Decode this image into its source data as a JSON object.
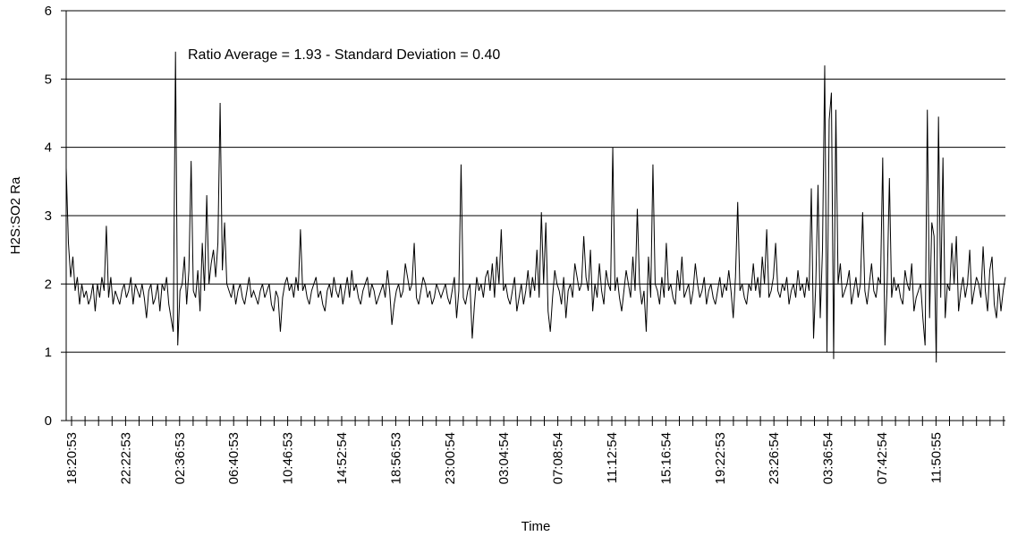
{
  "chart_data": {
    "type": "line",
    "title": "",
    "annotation": "Ratio Average = 1.93 - Standard Deviation = 0.40",
    "xlabel": "Time",
    "ylabel": "H2S:SO2 Ra",
    "ylim": [
      0,
      6
    ],
    "yticks": [
      0,
      1,
      2,
      3,
      4,
      5,
      6
    ],
    "grid": "horizontal",
    "legend": "none",
    "line_color": "#000000",
    "xtick_labels": [
      "18:20:53",
      "22:22:53",
      "02:36:53",
      "06:40:53",
      "10:46:53",
      "14:52:54",
      "18:56:53",
      "23:00:54",
      "03:04:54",
      "07:08:54",
      "11:12:54",
      "15:16:54",
      "19:22:53",
      "23:26:54",
      "03:36:54",
      "07:42:54",
      "11:50:55"
    ],
    "series": [
      {
        "name": "",
        "values": [
          3.7,
          2.6,
          2.1,
          2.4,
          1.9,
          2.1,
          1.7,
          2.0,
          1.8,
          1.9,
          1.7,
          1.8,
          2.0,
          1.6,
          2.0,
          1.8,
          2.1,
          1.9,
          2.85,
          1.8,
          2.1,
          1.7,
          1.9,
          1.8,
          1.7,
          1.9,
          2.0,
          1.8,
          1.9,
          2.1,
          1.7,
          2.0,
          1.9,
          1.8,
          2.0,
          1.8,
          1.5,
          1.9,
          2.0,
          1.7,
          1.8,
          2.0,
          1.6,
          2.0,
          1.9,
          2.1,
          1.7,
          1.5,
          1.3,
          5.4,
          1.1,
          1.9,
          2.0,
          2.4,
          1.7,
          2.2,
          3.8,
          1.9,
          1.8,
          2.2,
          1.6,
          2.6,
          1.9,
          3.3,
          2.0,
          2.3,
          2.5,
          2.1,
          2.6,
          4.65,
          2.2,
          2.9,
          2.0,
          1.9,
          1.8,
          2.0,
          1.7,
          1.9,
          2.0,
          1.8,
          1.7,
          1.9,
          2.1,
          1.8,
          1.9,
          1.8,
          1.7,
          1.9,
          2.0,
          1.8,
          1.9,
          2.0,
          1.7,
          1.6,
          1.9,
          1.8,
          1.3,
          1.8,
          2.0,
          2.1,
          1.9,
          2.0,
          1.8,
          2.1,
          1.9,
          2.8,
          1.9,
          2.0,
          1.8,
          1.7,
          1.9,
          2.0,
          2.1,
          1.8,
          1.9,
          1.7,
          1.6,
          1.9,
          2.0,
          1.8,
          2.1,
          1.9,
          1.8,
          2.0,
          1.7,
          1.9,
          2.1,
          1.8,
          2.2,
          1.9,
          2.0,
          1.8,
          1.7,
          1.9,
          2.0,
          2.1,
          1.8,
          2.0,
          1.9,
          1.7,
          1.8,
          1.9,
          2.0,
          1.8,
          2.2,
          1.9,
          1.4,
          1.7,
          1.9,
          2.0,
          1.8,
          1.9,
          2.3,
          2.1,
          1.9,
          2.0,
          2.6,
          1.8,
          1.7,
          1.9,
          2.1,
          2.0,
          1.8,
          1.9,
          1.7,
          1.8,
          2.0,
          1.9,
          1.8,
          1.9,
          2.0,
          1.8,
          1.7,
          1.9,
          2.1,
          1.5,
          1.9,
          3.75,
          1.8,
          1.7,
          1.9,
          2.0,
          1.2,
          1.7,
          2.1,
          1.9,
          2.0,
          1.8,
          2.1,
          2.2,
          1.9,
          2.3,
          1.8,
          2.4,
          2.0,
          2.8,
          1.9,
          2.0,
          1.8,
          1.7,
          1.9,
          2.1,
          1.6,
          1.8,
          2.0,
          1.7,
          1.9,
          2.2,
          1.8,
          2.1,
          1.9,
          2.5,
          1.8,
          3.05,
          2.0,
          2.9,
          1.6,
          1.3,
          1.8,
          2.2,
          2.0,
          1.9,
          1.7,
          2.1,
          1.5,
          1.9,
          2.0,
          1.8,
          2.3,
          2.1,
          1.9,
          2.0,
          2.7,
          2.1,
          1.9,
          2.5,
          1.6,
          2.0,
          1.8,
          2.3,
          1.9,
          1.7,
          2.2,
          2.0,
          1.9,
          4.0,
          1.9,
          2.1,
          1.8,
          1.6,
          1.9,
          2.2,
          2.0,
          1.8,
          2.4,
          1.9,
          3.1,
          2.0,
          1.7,
          1.9,
          1.3,
          2.4,
          1.8,
          3.75,
          2.0,
          1.9,
          1.7,
          2.1,
          1.8,
          2.6,
          1.9,
          2.0,
          1.8,
          1.7,
          2.2,
          1.9,
          2.4,
          1.8,
          1.9,
          2.0,
          1.7,
          1.9,
          2.3,
          2.0,
          1.8,
          1.9,
          2.1,
          1.7,
          1.9,
          2.0,
          1.8,
          1.7,
          1.9,
          2.1,
          1.8,
          2.0,
          1.9,
          2.2,
          1.9,
          1.5,
          2.1,
          3.2,
          1.9,
          2.0,
          1.8,
          1.7,
          2.0,
          1.9,
          2.3,
          1.9,
          2.1,
          1.8,
          2.4,
          2.0,
          2.8,
          1.8,
          1.9,
          2.1,
          2.6,
          1.9,
          1.8,
          2.0,
          1.9,
          2.1,
          1.7,
          1.9,
          2.0,
          1.8,
          2.2,
          1.9,
          2.0,
          1.8,
          2.1,
          1.9,
          3.4,
          1.2,
          2.0,
          3.45,
          1.5,
          2.5,
          5.2,
          1.0,
          4.4,
          4.8,
          0.9,
          4.55,
          2.0,
          2.3,
          1.8,
          1.9,
          2.0,
          2.2,
          1.7,
          1.9,
          2.1,
          1.8,
          2.0,
          3.05,
          1.9,
          1.7,
          2.0,
          2.3,
          1.9,
          1.8,
          2.1,
          2.0,
          3.85,
          1.1,
          2.0,
          3.55,
          1.8,
          2.1,
          1.9,
          2.0,
          1.8,
          1.7,
          2.2,
          2.0,
          1.9,
          2.3,
          1.6,
          1.8,
          1.9,
          2.0,
          1.5,
          1.1,
          4.55,
          1.5,
          2.9,
          2.7,
          0.85,
          4.45,
          1.8,
          3.85,
          1.5,
          2.0,
          1.9,
          2.6,
          2.0,
          2.7,
          1.6,
          1.9,
          2.1,
          1.8,
          2.0,
          2.5,
          1.7,
          1.9,
          2.1,
          2.0,
          1.8,
          2.55,
          1.9,
          1.6,
          2.2,
          2.4,
          1.7,
          1.5,
          2.0,
          1.6,
          1.9,
          2.1
        ]
      }
    ]
  }
}
